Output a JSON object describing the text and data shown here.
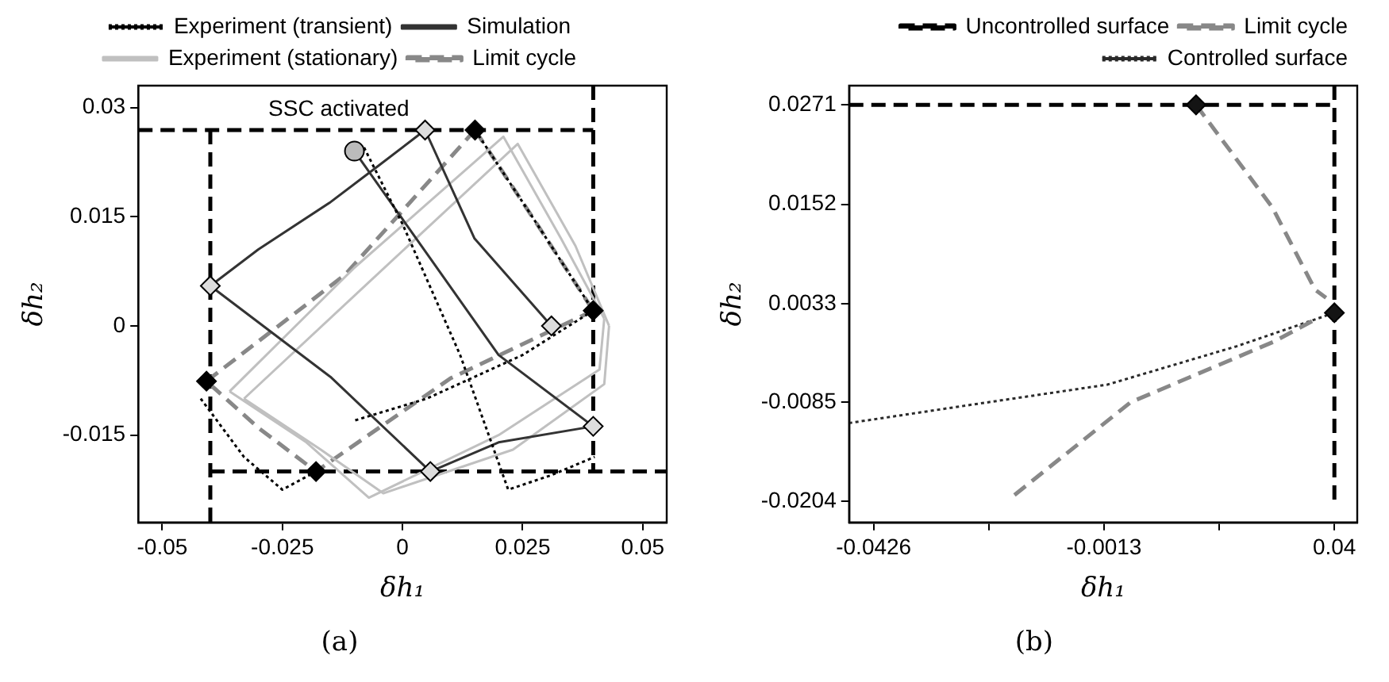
{
  "chart_data": [
    {
      "type": "line",
      "title": "(a)",
      "xlabel": "δh₁",
      "ylabel": "δh₂",
      "xlim": [
        -0.055,
        0.055
      ],
      "ylim": [
        -0.027,
        0.033
      ],
      "xticks": [
        -0.05,
        -0.025,
        0,
        0.025,
        0.05
      ],
      "yticks": [
        -0.015,
        0,
        0.015,
        0.03
      ],
      "grid": false,
      "legend": "top",
      "annotations": [
        {
          "text": "SSC activated",
          "x": 0.0047,
          "y": 0.0269
        }
      ],
      "series": [
        {
          "name": "Experiment (transient)",
          "color": "#000000",
          "line_style": "dotted",
          "marker": "none",
          "x": [
            -0.008,
            0.0,
            0.012,
            0.022,
            0.031,
            0.04,
            null,
            0.0151,
            0.027,
            0.0397,
            0.025,
            0.005,
            -0.01,
            null,
            -0.042,
            -0.033,
            -0.025,
            -0.018
          ],
          "values": [
            0.0245,
            0.014,
            -0.004,
            -0.0225,
            -0.0205,
            -0.018,
            null,
            0.0269,
            0.015,
            0.0021,
            -0.004,
            -0.01,
            -0.013,
            null,
            -0.01,
            -0.018,
            -0.0225,
            -0.02
          ]
        },
        {
          "name": "Simulation",
          "color": "#333333",
          "line_style": "solid",
          "marker": "none",
          "x": [
            -0.04,
            -0.03,
            -0.015,
            -0.005,
            0.0047,
            0.015,
            0.031,
            null,
            -0.01,
            0.005,
            0.02,
            0.0397,
            null,
            -0.04,
            -0.015,
            0.0058,
            0.02,
            0.0397
          ],
          "values": [
            0.0055,
            0.0105,
            0.017,
            0.022,
            0.0269,
            0.012,
            0.0,
            null,
            0.024,
            0.01,
            -0.004,
            -0.0138,
            null,
            0.0055,
            -0.007,
            -0.02,
            -0.016,
            -0.0138
          ]
        },
        {
          "name": "Experiment (stationary)",
          "color": "#c0c0c0",
          "line_style": "solid",
          "marker": "none",
          "x": [
            -0.036,
            -0.01,
            0.021,
            0.033,
            0.042
          ],
          "values": [
            -0.009,
            0.008,
            0.026,
            0.012,
            0.001
          ]
        },
        {
          "color": "#c0c0c0",
          "line_style": "solid",
          "marker": "none",
          "x": [
            0.042,
            0.041,
            0.02,
            -0.007,
            -0.02,
            -0.036
          ],
          "values": [
            0.001,
            -0.006,
            -0.015,
            -0.0236,
            -0.016,
            -0.009
          ]
        },
        {
          "color": "#c0c0c0",
          "line_style": "solid",
          "marker": "none",
          "x": [
            -0.033,
            -0.007,
            0.024,
            0.036,
            0.043
          ],
          "values": [
            -0.01,
            0.006,
            0.025,
            0.011,
            0.0
          ]
        },
        {
          "color": "#c0c0c0",
          "line_style": "solid",
          "marker": "none",
          "x": [
            0.043,
            0.042,
            0.023,
            -0.004,
            -0.017,
            -0.033
          ],
          "values": [
            0.0,
            -0.008,
            -0.017,
            -0.023,
            -0.017,
            -0.01
          ]
        },
        {
          "name": "Limit cycle",
          "color": "#888888",
          "line_style": "dashed",
          "marker": "none",
          "x": [
            0.0151,
            0.027,
            0.0397
          ],
          "values": [
            0.0269,
            0.015,
            0.0021
          ]
        },
        {
          "color": "#888888",
          "line_style": "dashed",
          "marker": "none",
          "x": [
            0.0397,
            0.01,
            -0.018,
            -0.03,
            -0.0408
          ],
          "values": [
            0.0021,
            -0.0072,
            -0.02,
            -0.014,
            -0.0076
          ]
        },
        {
          "color": "#888888",
          "line_style": "dashed",
          "marker": "none",
          "x": [
            -0.0408,
            -0.012,
            0.0151
          ],
          "values": [
            -0.0076,
            0.007,
            0.0269
          ]
        },
        {
          "color": "#000000",
          "line_style": "dashed",
          "marker": "none",
          "x": [
            -0.055,
            0.0397,
            null,
            0.0397,
            0.0397,
            null,
            -0.04,
            -0.04,
            null,
            -0.04,
            0.055
          ],
          "values": [
            0.0269,
            0.0269,
            null,
            0.033,
            -0.02,
            null,
            0.0269,
            -0.027,
            null,
            -0.02,
            -0.02
          ]
        },
        {
          "type": "scatter",
          "color": "#000000",
          "marker": "diamond",
          "x": [
            0.0151,
            0.0397,
            -0.0408,
            -0.018
          ],
          "values": [
            0.0269,
            0.0021,
            -0.0076,
            -0.02
          ]
        },
        {
          "type": "scatter",
          "color": "#dddddd",
          "marker": "diamond",
          "x": [
            0.0047,
            -0.04,
            0.031,
            0.0397,
            0.0058
          ],
          "values": [
            0.0269,
            0.0055,
            0.0,
            -0.0138,
            -0.02
          ]
        },
        {
          "type": "scatter",
          "color": "#bbbbbb",
          "marker": "circle",
          "x": [
            -0.01
          ],
          "values": [
            0.024
          ]
        }
      ]
    },
    {
      "type": "line",
      "title": "(b)",
      "xlabel": "δh₁",
      "ylabel": "δh₂",
      "xlim": [
        -0.047,
        0.0441
      ],
      "ylim": [
        -0.0229,
        0.0294
      ],
      "xticks": [
        -0.0426,
        {
          "value": -0.02195,
          "label": null
        },
        -0.0013,
        {
          "value": 0.01935,
          "label": null
        },
        0.04
      ],
      "yticks": [
        -0.0204,
        -0.0085,
        0.0033,
        0.0152,
        0.0271
      ],
      "grid": false,
      "legend": "top right",
      "series": [
        {
          "name": "Uncontrolled surface",
          "color": "#000000",
          "line_style": "dashed",
          "marker": "none",
          "x": [
            -0.047,
            0.04
          ],
          "values": [
            0.0271,
            0.0271
          ]
        },
        {
          "color": "#000000",
          "line_style": "dashed",
          "marker": "none",
          "x": [
            0.04,
            0.04
          ],
          "values": [
            0.0294,
            -0.0204
          ]
        },
        {
          "name": "Limit cycle",
          "color": "#888888",
          "line_style": "dashed",
          "marker": "none",
          "x": [
            0.0152,
            0.0289,
            0.0365,
            0.0385,
            null,
            0.036,
            0.029,
            0.0035,
            -0.0175
          ],
          "values": [
            0.0271,
            0.0148,
            0.005,
            0.004,
            null,
            0.0012,
            -0.0013,
            -0.0085,
            -0.0197
          ]
        },
        {
          "name": "Controlled surface",
          "color": "#2a2a2a",
          "line_style": "dotted",
          "marker": "none",
          "x": [
            -0.047,
            -0.025,
            -0.0007,
            0.0225,
            0.04
          ],
          "values": [
            -0.011,
            -0.0088,
            -0.0064,
            -0.0018,
            0.0022
          ]
        },
        {
          "type": "scatter",
          "color": "#141414",
          "marker": "diamond",
          "x": [
            0.0152,
            0.04
          ],
          "values": [
            0.0271,
            0.0022
          ]
        }
      ]
    }
  ]
}
